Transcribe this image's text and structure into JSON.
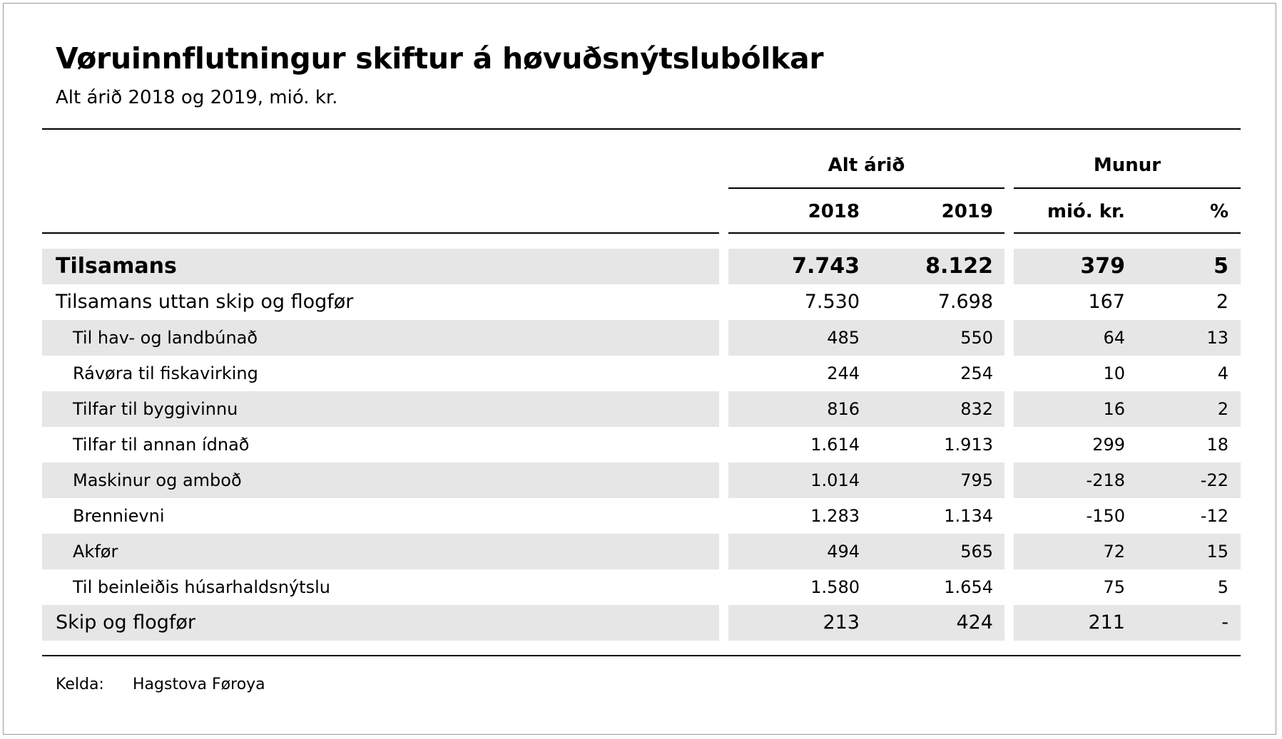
{
  "title": "Vøruinnflutningur skiftur á høvuðsnýtslubólkar",
  "subtitle": "Alt árið 2018 og 2019, mió. kr.",
  "header": {
    "group1": "Alt árið",
    "group2": "Munur",
    "col_2018": "2018",
    "col_2019": "2019",
    "col_diff": "mió. kr.",
    "col_pct": "%"
  },
  "rows": [
    {
      "label": "Tilsamans",
      "v2018": "7.743",
      "v2019": "8.122",
      "diff": "379",
      "pct": "5"
    },
    {
      "label": "Tilsamans uttan skip og flogfør",
      "v2018": "7.530",
      "v2019": "7.698",
      "diff": "167",
      "pct": "2"
    },
    {
      "label": "Til hav- og landbúnað",
      "v2018": "485",
      "v2019": "550",
      "diff": "64",
      "pct": "13"
    },
    {
      "label": "Rávøra til fiskavirking",
      "v2018": "244",
      "v2019": "254",
      "diff": "10",
      "pct": "4"
    },
    {
      "label": "Tilfar til byggivinnu",
      "v2018": "816",
      "v2019": "832",
      "diff": "16",
      "pct": "2"
    },
    {
      "label": "Tilfar til annan ídnað",
      "v2018": "1.614",
      "v2019": "1.913",
      "diff": "299",
      "pct": "18"
    },
    {
      "label": "Maskinur og amboð",
      "v2018": "1.014",
      "v2019": "795",
      "diff": "-218",
      "pct": "-22"
    },
    {
      "label": "Brennievni",
      "v2018": "1.283",
      "v2019": "1.134",
      "diff": "-150",
      "pct": "-12"
    },
    {
      "label": "Akfør",
      "v2018": "494",
      "v2019": "565",
      "diff": "72",
      "pct": "15"
    },
    {
      "label": "Til beinleiðis húsarhaldsnýtslu",
      "v2018": "1.580",
      "v2019": "1.654",
      "diff": "75",
      "pct": "5"
    },
    {
      "label": "Skip og flogfør",
      "v2018": "213",
      "v2019": "424",
      "diff": "211",
      "pct": "-"
    }
  ],
  "footer": {
    "source_label": "Kelda:",
    "source_value": "Hagstova Føroya"
  },
  "colors": {
    "band": "#e6e6e6",
    "rule": "#000000",
    "frame": "#9a9a9a"
  }
}
